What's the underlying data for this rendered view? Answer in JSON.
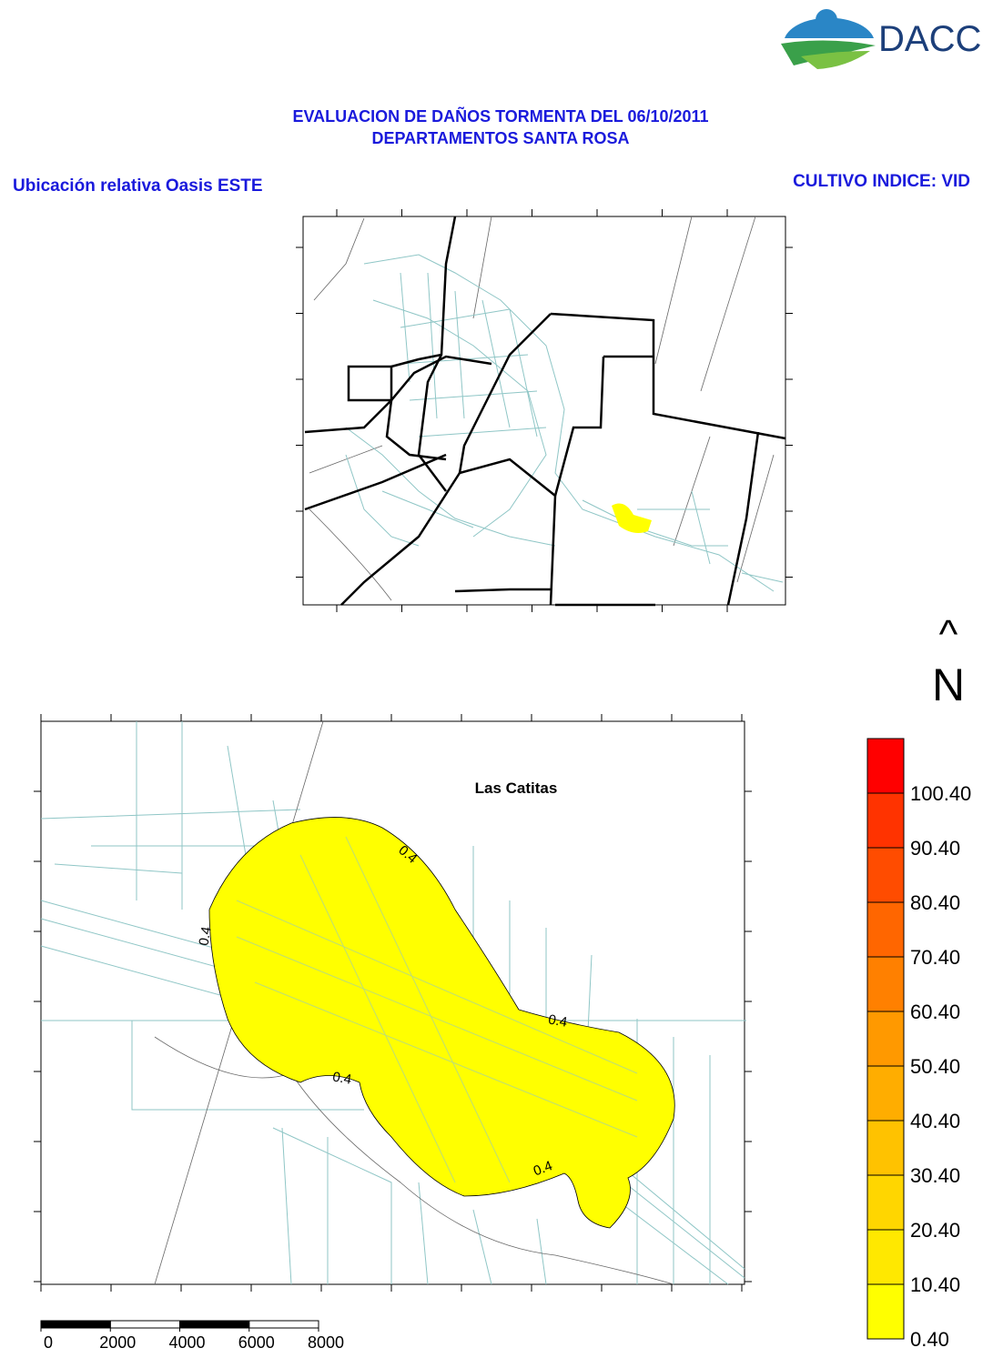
{
  "logo": {
    "text": "DACC"
  },
  "header": {
    "title": [
      "EVALUACION DE DAÑOS TORMENTA DEL 06/10/2011",
      "DEPARTAMENTOS SANTA ROSA"
    ],
    "left": "Ubicación relativa Oasis ESTE",
    "right": "CULTIVO INDICE: VID"
  },
  "main_map": {
    "place_label": "Las Catitas",
    "contour_labels": [
      "0.4",
      "0.4",
      "0.4",
      "0.4",
      "0.4"
    ]
  },
  "north": {
    "arrow": "^",
    "label": "N"
  },
  "legend": {
    "levels": [
      {
        "value": 0.4,
        "label": "0.40",
        "color": "#ffff00"
      },
      {
        "value": 10.4,
        "label": "10.40",
        "color": "#ffe800"
      },
      {
        "value": 20.4,
        "label": "20.40",
        "color": "#ffd600"
      },
      {
        "value": 30.4,
        "label": "30.40",
        "color": "#ffc200"
      },
      {
        "value": 40.4,
        "label": "40.40",
        "color": "#ffad00"
      },
      {
        "value": 50.4,
        "label": "50.40",
        "color": "#ff9900"
      },
      {
        "value": 60.4,
        "label": "60.40",
        "color": "#ff8000"
      },
      {
        "value": 70.4,
        "label": "70.40",
        "color": "#ff6600"
      },
      {
        "value": 80.4,
        "label": "80.40",
        "color": "#ff4c00"
      },
      {
        "value": 90.4,
        "label": "90.40",
        "color": "#ff3300"
      },
      {
        "value": 100.4,
        "label": "100.40",
        "color": "#ff0000"
      }
    ]
  },
  "scale_bar": {
    "ticks": [
      0,
      2000,
      4000,
      6000,
      8000
    ]
  }
}
